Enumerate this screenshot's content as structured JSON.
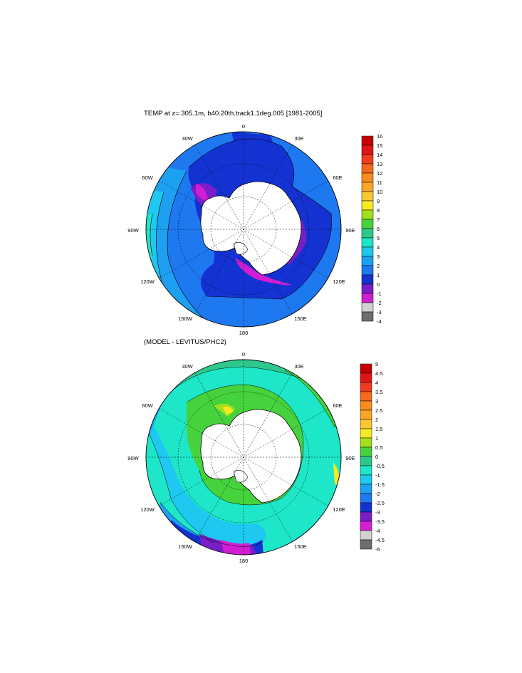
{
  "panels": [
    {
      "title": "TEMP at z= 305.1m, b40.20th.track1.1deg.005 [1981-2005]",
      "lon_labels": [
        "0",
        "30E",
        "60E",
        "90E",
        "120E",
        "150E",
        "180",
        "150W",
        "120W",
        "90W",
        "60W",
        "30W"
      ],
      "colorbar": {
        "labels": [
          "16",
          "15",
          "14",
          "13",
          "12",
          "11",
          "10",
          "9",
          "8",
          "7",
          "6",
          "5",
          "4",
          "3",
          "2",
          "1",
          "0",
          "-1",
          "-2",
          "-3",
          "-4"
        ],
        "colors": [
          "#c40000",
          "#e01414",
          "#f03c1e",
          "#f56a1e",
          "#f88c1e",
          "#faa628",
          "#fbc832",
          "#f7ea22",
          "#a2e01e",
          "#46d23c",
          "#2dc88c",
          "#1ee6c8",
          "#1ec8f0",
          "#1ea0f0",
          "#1e78f0",
          "#1432d2",
          "#7a1ec8",
          "#d21ed2",
          "#d2d2d2",
          "#6e6e6e"
        ]
      }
    },
    {
      "title": "(MODEL - LEVITUS/PHC2)",
      "lon_labels": [
        "0",
        "30E",
        "60E",
        "90E",
        "120E",
        "150E",
        "180",
        "150W",
        "120W",
        "90W",
        "60W",
        "30W"
      ],
      "colorbar": {
        "labels": [
          "5",
          "4.5",
          "4",
          "3.5",
          "3",
          "2.5",
          "2",
          "1.5",
          "1",
          "0.5",
          "0",
          "-0.5",
          "-1",
          "-1.5",
          "-2",
          "-2.5",
          "-3",
          "-3.5",
          "-4",
          "-4.5",
          "-5"
        ],
        "colors": [
          "#c40000",
          "#e01414",
          "#f03c1e",
          "#f56a1e",
          "#f88c1e",
          "#faa628",
          "#fbc832",
          "#f7ea22",
          "#a2e01e",
          "#46d23c",
          "#2dc88c",
          "#1ee6c8",
          "#1ec8f0",
          "#1ea0f0",
          "#1e78f0",
          "#1432d2",
          "#7a1ec8",
          "#d21ed2",
          "#d2d2d2",
          "#6e6e6e"
        ]
      }
    }
  ]
}
